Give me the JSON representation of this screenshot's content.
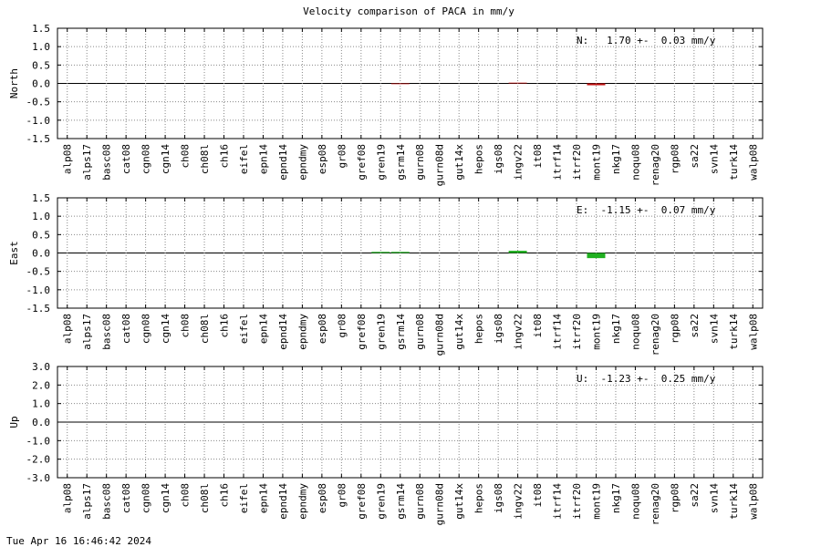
{
  "title": "Velocity comparison of PACA in mm/y",
  "footer": "Tue Apr 16 16:46:42 2024",
  "chart_data": [
    {
      "type": "bar",
      "ylabel": "North",
      "annotation": "N:   1.70 +-  0.03 mm/y",
      "color": "#c01010",
      "grid": true,
      "categories": [
        "alp08",
        "alps17",
        "basc08",
        "cat08",
        "cgn08",
        "cgn14",
        "ch08",
        "ch08l",
        "ch16",
        "eifel",
        "epn14",
        "epnd14",
        "epndmy",
        "esp08",
        "gr08",
        "gref08",
        "gren19",
        "gsrm14",
        "gurn08",
        "gurn08d",
        "gut14x",
        "hepos",
        "igs08",
        "ingv22",
        "it08",
        "itrf14",
        "itrf20",
        "mont19",
        "nkg17",
        "noqu08",
        "renag20",
        "rgp08",
        "sa22",
        "svn14",
        "turk14",
        "walp08"
      ],
      "values": [
        null,
        null,
        null,
        null,
        null,
        null,
        null,
        null,
        null,
        null,
        null,
        null,
        null,
        null,
        null,
        null,
        null,
        -0.02,
        null,
        null,
        null,
        null,
        null,
        0.02,
        null,
        null,
        null,
        -0.05,
        null,
        null,
        null,
        null,
        null,
        null,
        null,
        null
      ],
      "ylim": [
        -1.5,
        1.5
      ],
      "yticks": [
        1.5,
        {
          "value": 1.0,
          "label": "1.0"
        },
        0.5,
        {
          "value": 0,
          "label": "0.0"
        },
        -0.5,
        {
          "value": -1.0,
          "label": "-1.0"
        },
        -1.5
      ]
    },
    {
      "type": "bar",
      "ylabel": "East",
      "annotation": "E:  -1.15 +-  0.07 mm/y",
      "color": "#20b020",
      "grid": true,
      "categories": [
        "alp08",
        "alps17",
        "basc08",
        "cat08",
        "cgn08",
        "cgn14",
        "ch08",
        "ch08l",
        "ch16",
        "eifel",
        "epn14",
        "epnd14",
        "epndmy",
        "esp08",
        "gr08",
        "gref08",
        "gren19",
        "gsrm14",
        "gurn08",
        "gurn08d",
        "gut14x",
        "hepos",
        "igs08",
        "ingv22",
        "it08",
        "itrf14",
        "itrf20",
        "mont19",
        "nkg17",
        "noqu08",
        "renag20",
        "rgp08",
        "sa22",
        "svn14",
        "turk14",
        "walp08"
      ],
      "values": [
        null,
        null,
        null,
        null,
        null,
        null,
        null,
        null,
        null,
        null,
        null,
        null,
        null,
        null,
        null,
        null,
        0.03,
        0.03,
        null,
        null,
        null,
        null,
        null,
        0.06,
        null,
        null,
        null,
        -0.14,
        null,
        null,
        null,
        null,
        null,
        null,
        null,
        null
      ],
      "ylim": [
        -1.5,
        1.5
      ],
      "yticks": [
        1.5,
        {
          "value": 1.0,
          "label": "1.0"
        },
        0.5,
        {
          "value": 0,
          "label": "0.0"
        },
        -0.5,
        {
          "value": -1.0,
          "label": "-1.0"
        },
        -1.5
      ]
    },
    {
      "type": "bar",
      "ylabel": "Up",
      "annotation": "U:  -1.23 +-  0.25 mm/y",
      "color": "#1e80e8",
      "grid": true,
      "categories": [
        "alp08",
        "alps17",
        "basc08",
        "cat08",
        "cgn08",
        "cgn14",
        "ch08",
        "ch08l",
        "ch16",
        "eifel",
        "epn14",
        "epnd14",
        "epndmy",
        "esp08",
        "gr08",
        "gref08",
        "gren19",
        "gsrm14",
        "gurn08",
        "gurn08d",
        "gut14x",
        "hepos",
        "igs08",
        "ingv22",
        "it08",
        "itrf14",
        "itrf20",
        "mont19",
        "nkg17",
        "noqu08",
        "renag20",
        "rgp08",
        "sa22",
        "svn14",
        "turk14",
        "walp08"
      ],
      "values": [
        null,
        null,
        null,
        null,
        null,
        null,
        null,
        null,
        null,
        null,
        null,
        null,
        null,
        null,
        null,
        null,
        null,
        null,
        null,
        null,
        null,
        null,
        null,
        null,
        null,
        null,
        null,
        null,
        null,
        null,
        null,
        null,
        null,
        null,
        null,
        null
      ],
      "ylim": [
        -3.0,
        3.0
      ],
      "yticks": [
        {
          "value": 3.0,
          "label": "3.0"
        },
        {
          "value": 2.0,
          "label": "2.0"
        },
        {
          "value": 1.0,
          "label": "1.0"
        },
        {
          "value": 0,
          "label": "0.0"
        },
        {
          "value": -1.0,
          "label": "-1.0"
        },
        {
          "value": -2.0,
          "label": "-2.0"
        },
        {
          "value": -3.0,
          "label": "-3.0"
        }
      ]
    }
  ]
}
